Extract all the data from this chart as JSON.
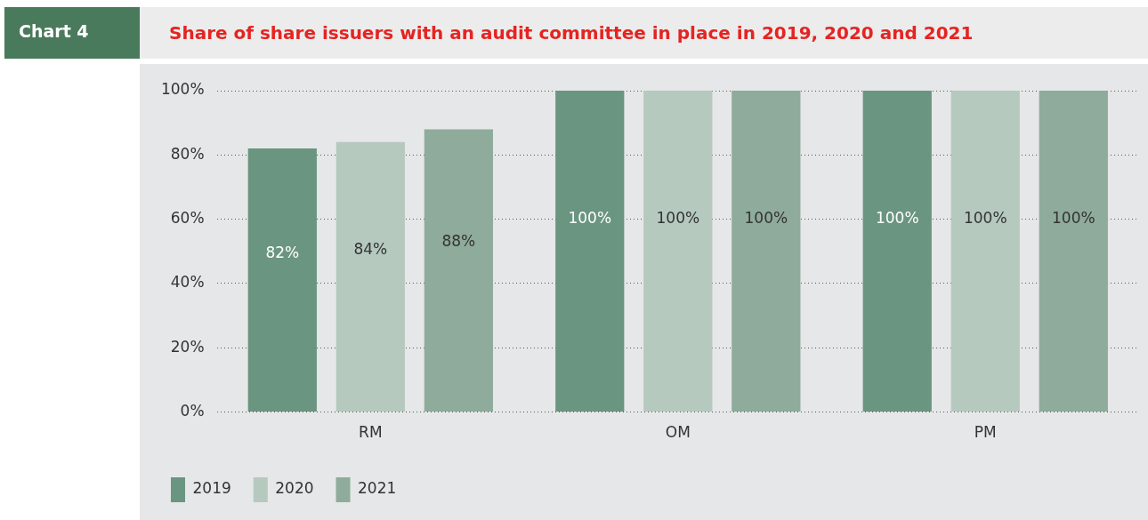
{
  "chart_data": {
    "type": "bar",
    "title": "Share of share issuers with an audit committee in place in 2019, 2020 and 2021",
    "annotations": [
      "Chart 4"
    ],
    "categories": [
      "RM",
      "OM",
      "PM"
    ],
    "series": [
      {
        "name": "2019",
        "color": "#6a9580",
        "values": [
          82,
          100,
          100
        ],
        "value_labels": [
          "82%",
          "100%",
          "100%"
        ]
      },
      {
        "name": "2020",
        "color": "#b5c9bf",
        "values": [
          84,
          100,
          100
        ],
        "value_labels": [
          "84%",
          "100%",
          "100%"
        ]
      },
      {
        "name": "2021",
        "color": "#8fab9b",
        "values": [
          88,
          100,
          100
        ],
        "value_labels": [
          "88%",
          "100%",
          "100%"
        ]
      }
    ],
    "ylim": [
      0,
      100
    ],
    "yticks": [
      {
        "value": 0,
        "label": "0%"
      },
      {
        "value": 20,
        "label": "20%"
      },
      {
        "value": 40,
        "label": "40%"
      },
      {
        "value": 60,
        "label": "60%"
      },
      {
        "value": 80,
        "label": "80%"
      },
      {
        "value": 100,
        "label": "100%"
      }
    ],
    "grid": "y",
    "legend": "bottom left"
  }
}
